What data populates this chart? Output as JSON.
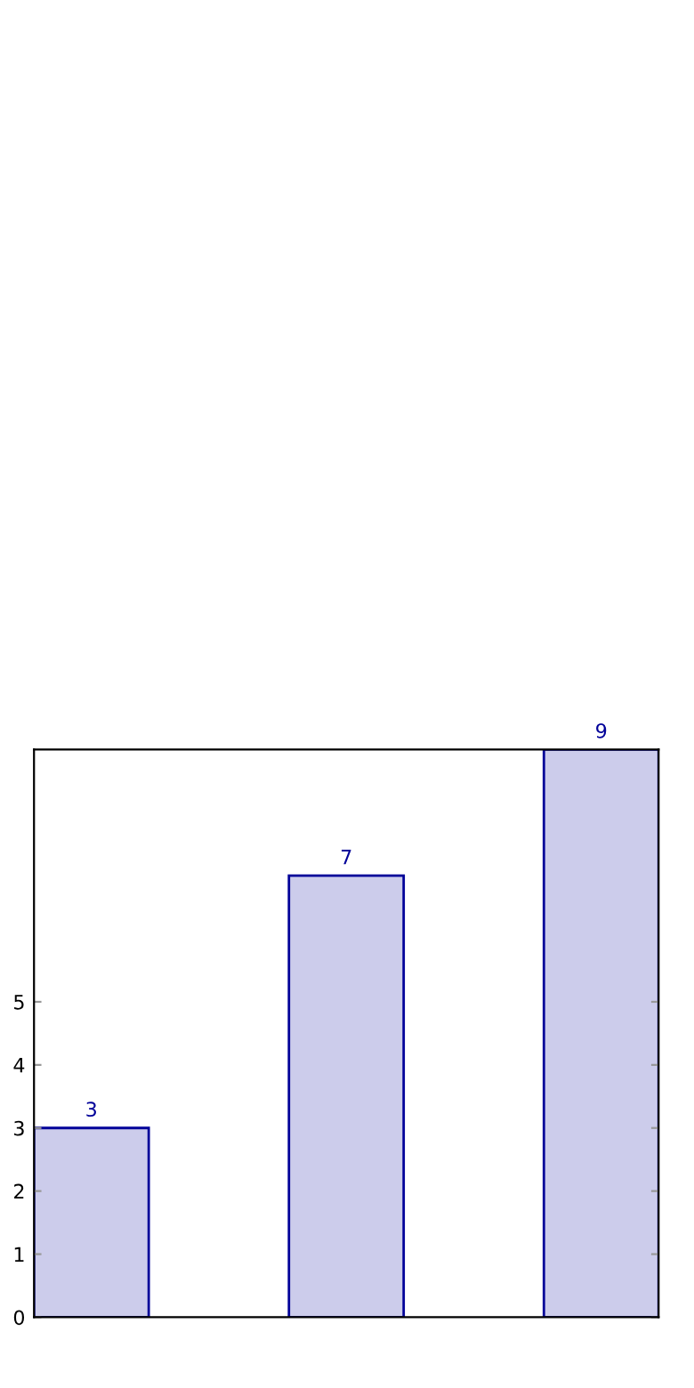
{
  "chart_data": {
    "type": "bar",
    "categories": [
      null,
      null,
      null
    ],
    "values": [
      3,
      7,
      9
    ],
    "color": "#000099",
    "ylim": [
      0,
      9
    ],
    "yticks": [
      0,
      1,
      2,
      3,
      4,
      5
    ],
    "data_labels": true,
    "grid": false,
    "legend": false
  }
}
